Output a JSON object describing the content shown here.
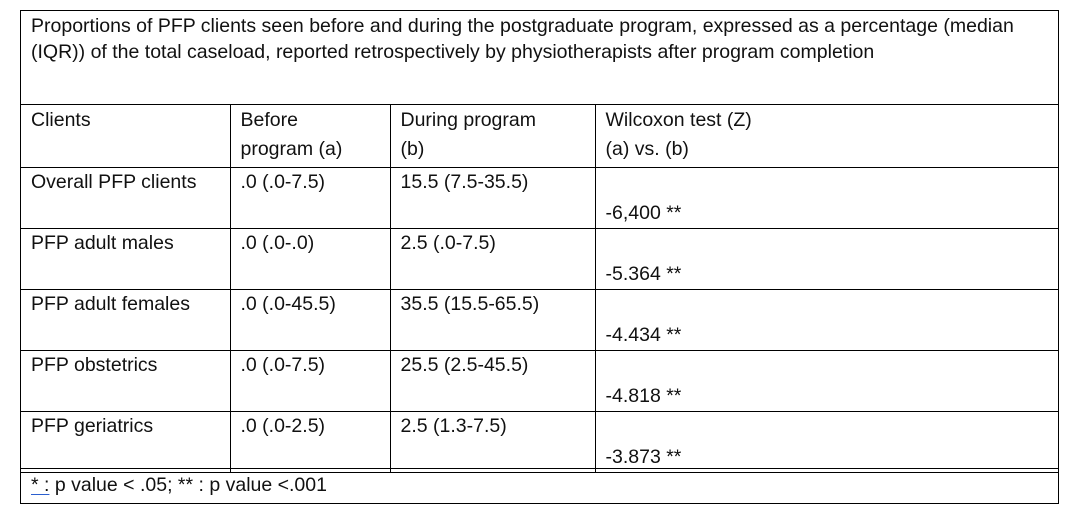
{
  "caption": "Proportions of PFP clients seen before and during the postgraduate program, expressed as a percentage (median (IQR)) of the total caseload, reported retrospectively by physiotherapists after program completion",
  "headers": {
    "clients": "Clients",
    "before_line1": "Before",
    "before_line2": "program (a)",
    "during_line1": "During program",
    "during_line2": "(b)",
    "wilcoxon_line1": "Wilcoxon test (Z)",
    "wilcoxon_line2": "(a) vs. (b)"
  },
  "rows": [
    {
      "client": "Overall PFP clients",
      "before": ".0 (.0-7.5)",
      "during": "15.5 (7.5-35.5)",
      "z": "-6,400 **"
    },
    {
      "client": "PFP adult males",
      "before": ".0 (.0-.0)",
      "during": "2.5 (.0-7.5)",
      "z": "-5.364 **"
    },
    {
      "client": "PFP adult females",
      "before": ".0 (.0-45.5)",
      "during": "35.5 (15.5-65.5)",
      "z": "-4.434 **"
    },
    {
      "client": "PFP obstetrics",
      "before": ".0 (.0-7.5)",
      "during": "25.5 (2.5-45.5)",
      "z": "-4.818 **"
    },
    {
      "client": "PFP geriatrics",
      "before": ".0 (.0-2.5)",
      "during": "2.5 (1.3-7.5)",
      "z": "-3.873 **"
    }
  ],
  "footnote": {
    "marker": "* :",
    "text": " p value < .05; ** : p value  <.001"
  }
}
